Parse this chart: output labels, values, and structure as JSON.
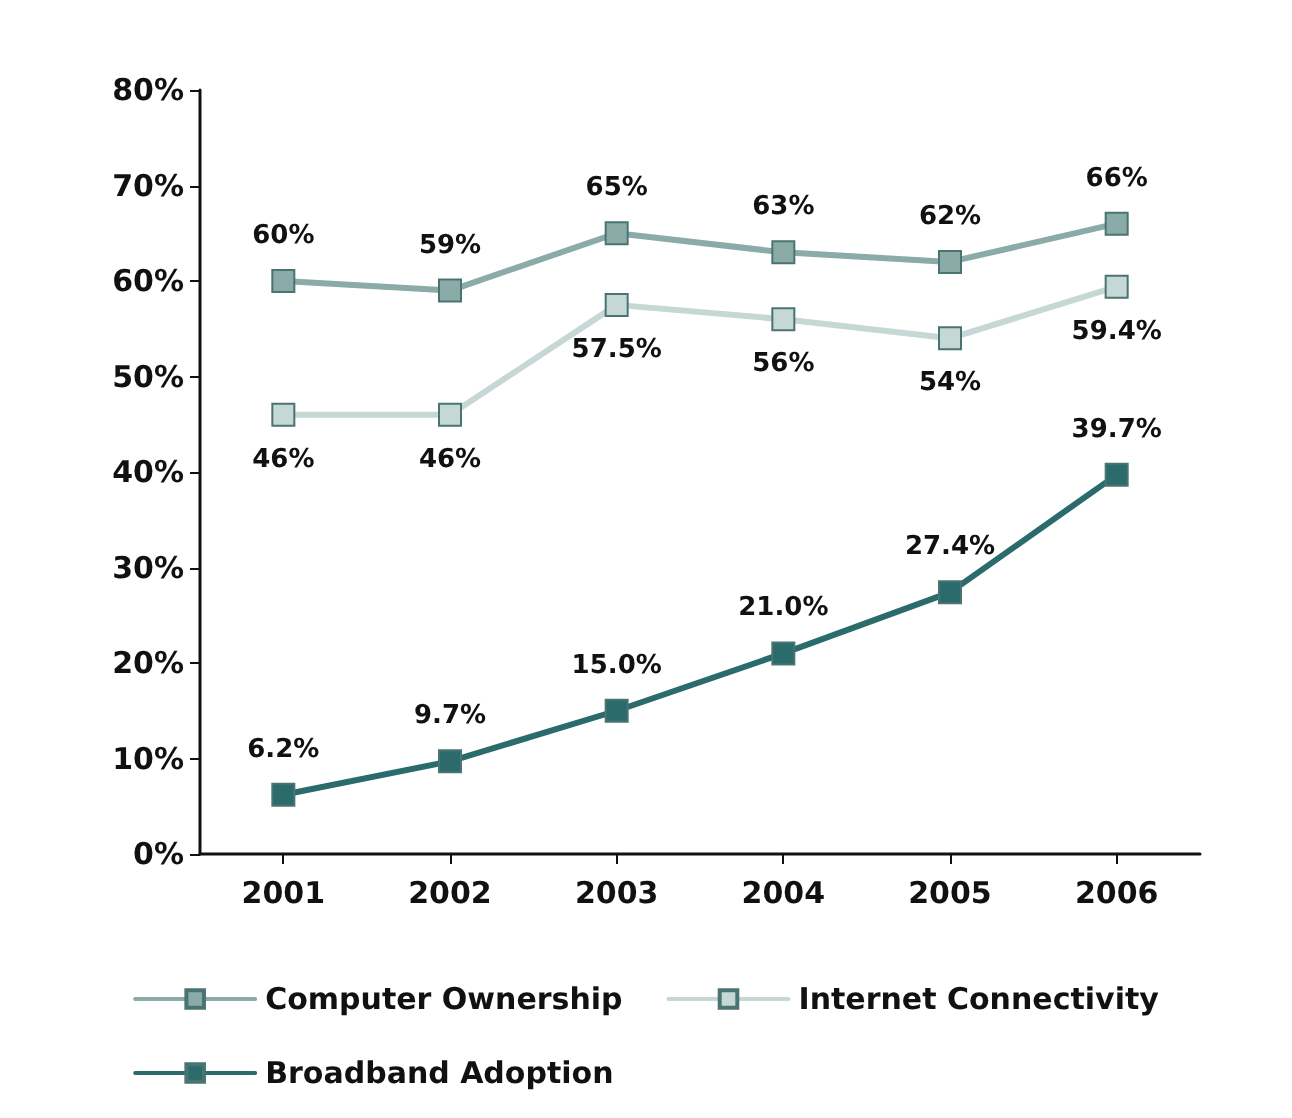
{
  "chart_data": {
    "type": "line",
    "categories": [
      "2001",
      "2002",
      "2003",
      "2004",
      "2005",
      "2006"
    ],
    "series": [
      {
        "name": "Computer Ownership",
        "color": "#8aaba8",
        "values": [
          60,
          59,
          65,
          63,
          62,
          66
        ],
        "value_labels": [
          "60%",
          "59%",
          "65%",
          "63%",
          "62%",
          "66%"
        ]
      },
      {
        "name": "Internet Connectivity",
        "color": "#c5d8d5",
        "values": [
          46,
          46,
          57.5,
          56,
          54,
          59.4
        ],
        "value_labels": [
          "46%",
          "46%",
          "57.5%",
          "56%",
          "54%",
          "59.4%"
        ]
      },
      {
        "name": "Broadband Adoption",
        "color": "#2b6b6b",
        "values": [
          6.2,
          9.7,
          15.0,
          21.0,
          27.4,
          39.7
        ],
        "value_labels": [
          "6.2%",
          "9.7%",
          "15.0%",
          "21.0%",
          "27.4%",
          "39.7%"
        ]
      }
    ],
    "ylim": [
      0,
      80
    ],
    "yticks": [
      {
        "value": 0,
        "label": "0%"
      },
      {
        "value": 10,
        "label": "10%"
      },
      {
        "value": 20,
        "label": "20%"
      },
      {
        "value": 30,
        "label": "30%"
      },
      {
        "value": 40,
        "label": "40%"
      },
      {
        "value": 50,
        "label": "50%"
      },
      {
        "value": 60,
        "label": "60%"
      },
      {
        "value": 70,
        "label": "70%"
      },
      {
        "value": 80,
        "label": "80%"
      }
    ],
    "grid": false,
    "legend": "bottom",
    "marker": "square",
    "line_style": "solid"
  }
}
